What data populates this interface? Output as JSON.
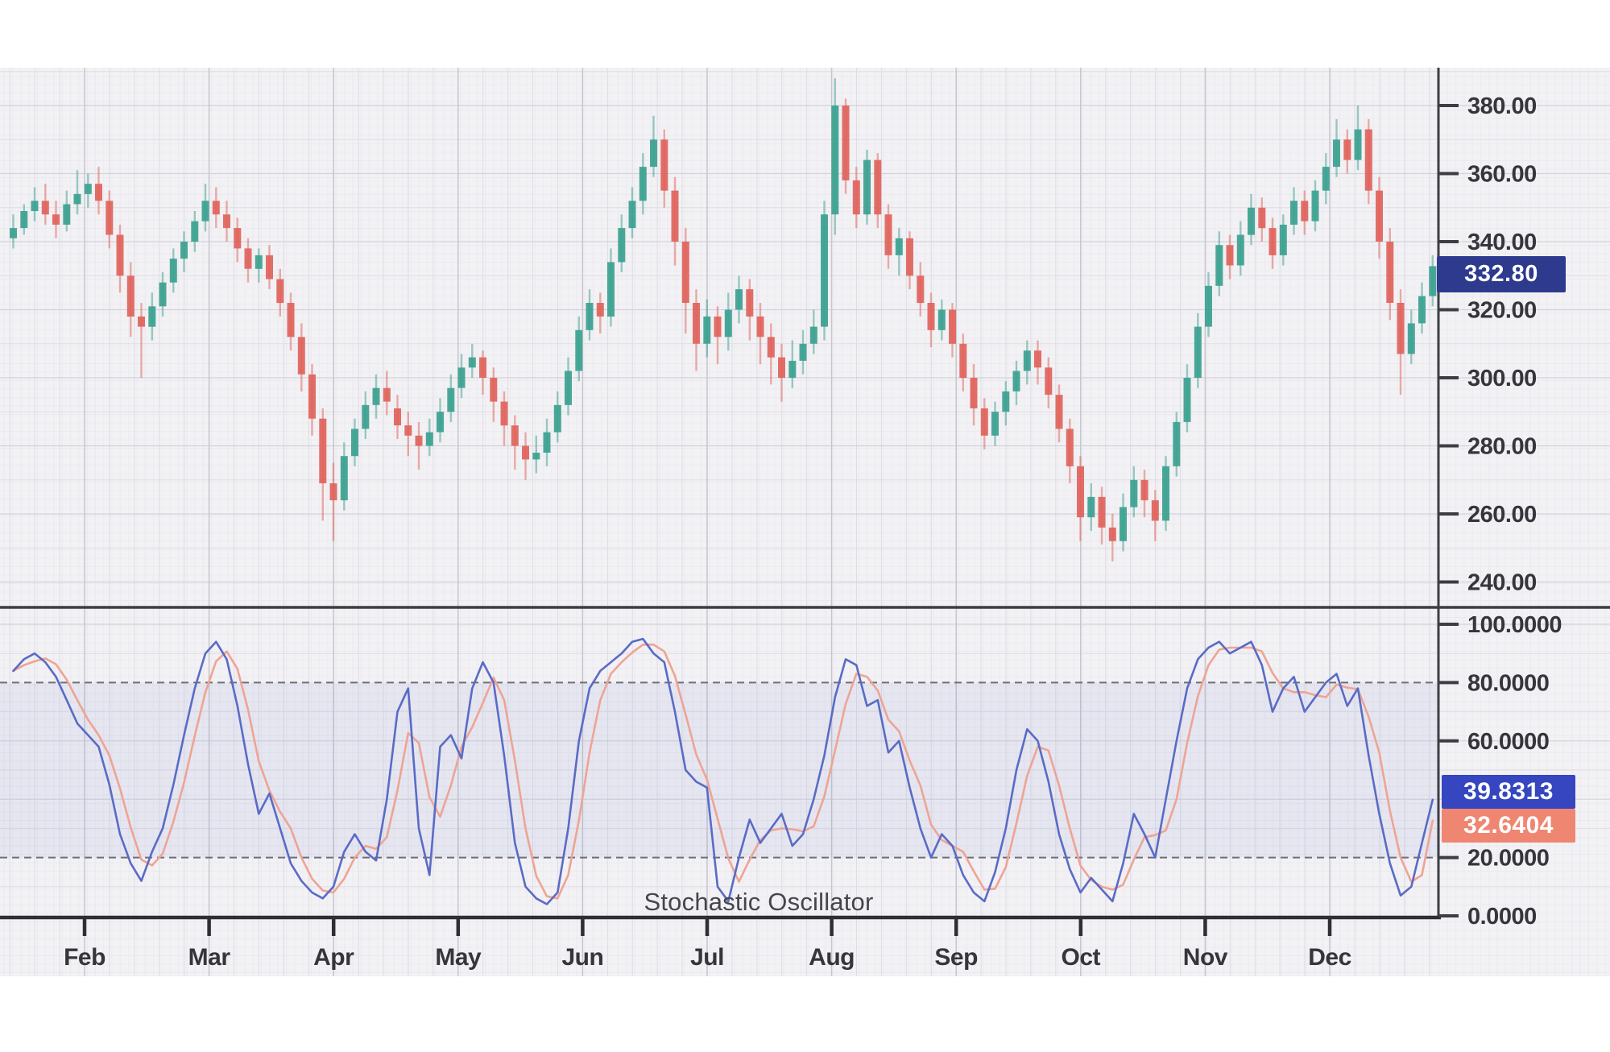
{
  "chart_data": {
    "type": "candlestick_with_stochastic_oscillator",
    "x_axis": {
      "tick_labels": [
        "Feb",
        "Mar",
        "Apr",
        "May",
        "Jun",
        "Jul",
        "Aug",
        "Sep",
        "Oct",
        "Nov",
        "Dec"
      ]
    },
    "price_panel": {
      "ticks": [
        {
          "value": 380,
          "label": "380.00"
        },
        {
          "value": 360,
          "label": "360.00"
        },
        {
          "value": 340,
          "label": "340.00"
        },
        {
          "value": 320,
          "label": "320.00"
        },
        {
          "value": 300,
          "label": "300.00"
        },
        {
          "value": 280,
          "label": "280.00"
        },
        {
          "value": 260,
          "label": "260.00"
        },
        {
          "value": 240,
          "label": "240.00"
        }
      ],
      "ylim": [
        232,
        391
      ],
      "last_price": {
        "value": 332.8,
        "label": "332.80"
      }
    },
    "oscillator_panel": {
      "title": "Stochastic Oscillator",
      "ticks": [
        {
          "value": 100,
          "label": "100.0000"
        },
        {
          "value": 80,
          "label": "80.0000"
        },
        {
          "value": 60,
          "label": "60.0000"
        },
        {
          "value": 20,
          "label": "20.0000"
        },
        {
          "value": 0,
          "label": "0.0000"
        }
      ],
      "ylim": [
        0,
        100
      ],
      "overbought_level": 80,
      "oversold_level": 20,
      "k": {
        "label": "39.8313",
        "value": 39.8313,
        "series": [
          84,
          88,
          90,
          87,
          82,
          74,
          66,
          62,
          58,
          45,
          28,
          18,
          12,
          22,
          30,
          45,
          62,
          78,
          90,
          94,
          88,
          72,
          52,
          35,
          42,
          30,
          18,
          12,
          8,
          6,
          10,
          22,
          28,
          22,
          19,
          40,
          70,
          78,
          30,
          14,
          58,
          62,
          54,
          78,
          87,
          80,
          55,
          25,
          10,
          6,
          4,
          8,
          30,
          60,
          78,
          84,
          87,
          90,
          94,
          95,
          90,
          87,
          70,
          50,
          46,
          44,
          10,
          5,
          20,
          33,
          25,
          30,
          35,
          24,
          28,
          40,
          55,
          75,
          88,
          86,
          72,
          74,
          56,
          60,
          44,
          30,
          20,
          28,
          24,
          14,
          8,
          5,
          15,
          30,
          50,
          64,
          60,
          46,
          28,
          16,
          8,
          13,
          9,
          5,
          18,
          35,
          28,
          20,
          40,
          60,
          78,
          88,
          92,
          94,
          90,
          92,
          94,
          86,
          70,
          78,
          82,
          70,
          75,
          80,
          83,
          72,
          78,
          55,
          35,
          18,
          7,
          10,
          25,
          39.8313
        ]
      },
      "d": {
        "label": "32.6404",
        "value": 32.6404,
        "series": [
          84,
          86,
          87.3,
          88.3,
          86.3,
          81,
          74,
          67.3,
          62,
          55,
          43.7,
          30.3,
          19.3,
          17.3,
          21.3,
          32.3,
          45.7,
          61.7,
          76.7,
          87.3,
          90.7,
          84.7,
          70.7,
          53,
          43,
          35.7,
          30,
          20,
          12.7,
          8.7,
          8,
          12.7,
          20,
          24,
          23,
          27,
          43,
          62.7,
          59.3,
          40.7,
          34,
          44.7,
          58,
          64.7,
          73,
          81.7,
          74,
          53.3,
          30,
          13.7,
          6.7,
          6,
          14,
          32.7,
          56,
          74,
          83,
          87,
          90.3,
          93,
          93,
          90.7,
          82.3,
          69,
          55.3,
          46.7,
          33.3,
          19.7,
          11.7,
          19.3,
          26,
          29.3,
          30,
          29.7,
          29,
          30.7,
          41,
          56.7,
          72.7,
          83,
          82,
          77.3,
          67.3,
          63.3,
          53.3,
          44.7,
          31.3,
          26,
          24,
          22,
          15.3,
          9,
          9.3,
          16.7,
          31.7,
          48,
          58,
          56.7,
          44.7,
          30,
          17.3,
          12.3,
          10,
          9,
          10.7,
          19.3,
          27,
          27.7,
          29.3,
          40,
          59.3,
          75.3,
          86,
          91.3,
          92,
          92,
          92,
          90.7,
          83.3,
          78,
          76.7,
          76.7,
          75.7,
          75,
          79.3,
          78.3,
          77.7,
          68.3,
          56,
          36,
          20,
          11.7,
          14,
          32.6404
        ]
      }
    },
    "candles_ohlc": [
      [
        341,
        348,
        338,
        344
      ],
      [
        344,
        351,
        342,
        349
      ],
      [
        349,
        356,
        346,
        352
      ],
      [
        352,
        357,
        345,
        348
      ],
      [
        348,
        352,
        341,
        345
      ],
      [
        345,
        355,
        343,
        351
      ],
      [
        351,
        361,
        348,
        354
      ],
      [
        354,
        360,
        350,
        357
      ],
      [
        357,
        362,
        348,
        352
      ],
      [
        352,
        355,
        338,
        342
      ],
      [
        342,
        345,
        325,
        330
      ],
      [
        330,
        334,
        312,
        318
      ],
      [
        318,
        322,
        300,
        315
      ],
      [
        315,
        325,
        311,
        321
      ],
      [
        321,
        331,
        318,
        328
      ],
      [
        328,
        338,
        325,
        335
      ],
      [
        335,
        343,
        331,
        340
      ],
      [
        340,
        349,
        337,
        346
      ],
      [
        346,
        357,
        343,
        352
      ],
      [
        352,
        356,
        344,
        348
      ],
      [
        348,
        352,
        340,
        344
      ],
      [
        344,
        347,
        334,
        338
      ],
      [
        338,
        341,
        328,
        332
      ],
      [
        332,
        338,
        328,
        336
      ],
      [
        336,
        339,
        326,
        329
      ],
      [
        329,
        332,
        318,
        322
      ],
      [
        322,
        325,
        308,
        312
      ],
      [
        312,
        316,
        296,
        301
      ],
      [
        301,
        304,
        283,
        288
      ],
      [
        288,
        291,
        258,
        269
      ],
      [
        269,
        275,
        252,
        264
      ],
      [
        264,
        281,
        261,
        277
      ],
      [
        277,
        288,
        274,
        285
      ],
      [
        285,
        296,
        282,
        292
      ],
      [
        292,
        301,
        288,
        297
      ],
      [
        297,
        302,
        289,
        293
      ],
      [
        291,
        295,
        282,
        286
      ],
      [
        286,
        290,
        277,
        283
      ],
      [
        283,
        287,
        273,
        280
      ],
      [
        280,
        288,
        277,
        284
      ],
      [
        284,
        294,
        281,
        290
      ],
      [
        290,
        301,
        287,
        297
      ],
      [
        297,
        307,
        294,
        303
      ],
      [
        303,
        310,
        300,
        306
      ],
      [
        306,
        308,
        295,
        300
      ],
      [
        300,
        303,
        287,
        293
      ],
      [
        293,
        296,
        280,
        286
      ],
      [
        286,
        289,
        273,
        280
      ],
      [
        280,
        284,
        270,
        276
      ],
      [
        276,
        283,
        272,
        278
      ],
      [
        278,
        288,
        274,
        284
      ],
      [
        284,
        296,
        281,
        292
      ],
      [
        292,
        306,
        289,
        302
      ],
      [
        302,
        318,
        299,
        314
      ],
      [
        314,
        326,
        311,
        322
      ],
      [
        322,
        325,
        313,
        318
      ],
      [
        318,
        338,
        315,
        334
      ],
      [
        334,
        348,
        331,
        344
      ],
      [
        344,
        356,
        341,
        352
      ],
      [
        352,
        366,
        348,
        362
      ],
      [
        362,
        377,
        359,
        370
      ],
      [
        370,
        373,
        350,
        355
      ],
      [
        355,
        359,
        333,
        340
      ],
      [
        340,
        344,
        313,
        322
      ],
      [
        322,
        326,
        302,
        310
      ],
      [
        310,
        323,
        306,
        318
      ],
      [
        318,
        321,
        304,
        312
      ],
      [
        312,
        325,
        308,
        320
      ],
      [
        320,
        330,
        316,
        326
      ],
      [
        326,
        329,
        311,
        318
      ],
      [
        318,
        322,
        304,
        312
      ],
      [
        312,
        316,
        298,
        306
      ],
      [
        306,
        310,
        293,
        300
      ],
      [
        300,
        311,
        297,
        305
      ],
      [
        305,
        314,
        301,
        310
      ],
      [
        310,
        320,
        307,
        315
      ],
      [
        315,
        352,
        311,
        348
      ],
      [
        348,
        388,
        342,
        380
      ],
      [
        380,
        382,
        354,
        358
      ],
      [
        358,
        362,
        344,
        348
      ],
      [
        348,
        367,
        345,
        364
      ],
      [
        364,
        366,
        344,
        348
      ],
      [
        348,
        351,
        332,
        336
      ],
      [
        336,
        344,
        330,
        341
      ],
      [
        341,
        343,
        326,
        330
      ],
      [
        330,
        334,
        318,
        322
      ],
      [
        322,
        325,
        309,
        314
      ],
      [
        314,
        323,
        311,
        320
      ],
      [
        320,
        322,
        306,
        310
      ],
      [
        310,
        313,
        296,
        300
      ],
      [
        300,
        304,
        286,
        291
      ],
      [
        291,
        294,
        279,
        283
      ],
      [
        283,
        293,
        280,
        290
      ],
      [
        290,
        299,
        286,
        296
      ],
      [
        296,
        305,
        292,
        302
      ],
      [
        302,
        311,
        298,
        308
      ],
      [
        308,
        311,
        298,
        303
      ],
      [
        303,
        306,
        291,
        295
      ],
      [
        295,
        298,
        281,
        285
      ],
      [
        285,
        288,
        269,
        274
      ],
      [
        274,
        277,
        252,
        259
      ],
      [
        259,
        269,
        255,
        265
      ],
      [
        265,
        268,
        251,
        256
      ],
      [
        256,
        260,
        246,
        252
      ],
      [
        252,
        266,
        249,
        262
      ],
      [
        262,
        274,
        259,
        270
      ],
      [
        270,
        273,
        259,
        264
      ],
      [
        264,
        267,
        252,
        258
      ],
      [
        258,
        277,
        255,
        274
      ],
      [
        274,
        290,
        271,
        287
      ],
      [
        287,
        304,
        284,
        300
      ],
      [
        300,
        319,
        297,
        315
      ],
      [
        315,
        331,
        312,
        327
      ],
      [
        327,
        343,
        324,
        339
      ],
      [
        339,
        342,
        329,
        333
      ],
      [
        333,
        346,
        330,
        342
      ],
      [
        342,
        354,
        339,
        350
      ],
      [
        350,
        353,
        340,
        344
      ],
      [
        344,
        347,
        332,
        336
      ],
      [
        336,
        348,
        333,
        345
      ],
      [
        345,
        356,
        342,
        352
      ],
      [
        352,
        355,
        342,
        346
      ],
      [
        346,
        358,
        343,
        355
      ],
      [
        355,
        366,
        351,
        362
      ],
      [
        362,
        376,
        359,
        370
      ],
      [
        370,
        373,
        360,
        364
      ],
      [
        364,
        380,
        361,
        373
      ],
      [
        373,
        376,
        351,
        355
      ],
      [
        355,
        359,
        335,
        340
      ],
      [
        340,
        344,
        317,
        322
      ],
      [
        322,
        326,
        295,
        307
      ],
      [
        307,
        320,
        304,
        316
      ],
      [
        316,
        328,
        313,
        324
      ],
      [
        324,
        336,
        321,
        332.8
      ]
    ]
  },
  "colors": {
    "chart_background": "#f2f1f4",
    "up_candle": "#3ba18f",
    "down_candle": "#e0635b",
    "k_line": "#5a6bc5",
    "d_line": "#eea494",
    "band_fill": "rgba(96,122,205,0.09)",
    "dashed_level": "#6e6e76",
    "axis": "#3d3d44",
    "label_text": "#35353b",
    "last_price_badge": "#2d3a8e",
    "k_badge": "#3546c0",
    "d_badge": "#ef8672"
  }
}
